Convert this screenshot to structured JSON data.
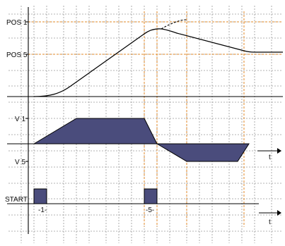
{
  "position_panel": {
    "labels": {
      "pos1": "POS 1",
      "pos5": "POS 5"
    }
  },
  "velocity_panel": {
    "labels": {
      "v1": "V 1",
      "v5": "V 5"
    },
    "axis_label": "t"
  },
  "start_panel": {
    "labels": {
      "start": "START"
    },
    "axis_label": "t",
    "pulse_labels": {
      "p1": "-1-",
      "p5": "-5-"
    }
  },
  "colors": {
    "fill": "#4a4c7c",
    "guide": "#e08a2a",
    "grid": "#9a9a9a",
    "line": "#000000"
  }
}
